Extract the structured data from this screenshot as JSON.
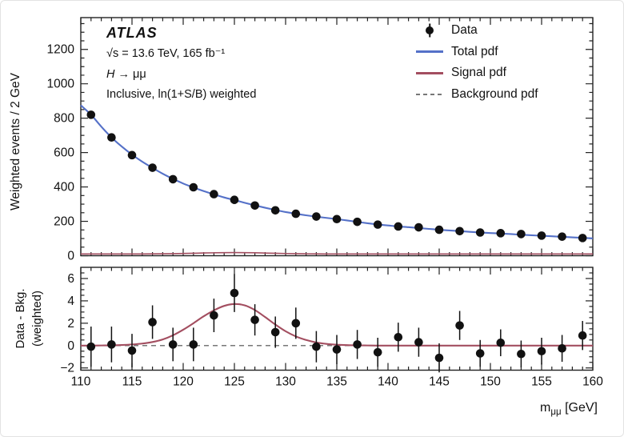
{
  "annotations": {
    "experiment": "ATLAS",
    "lumi_line": "√s = 13.6 TeV, 165 fb⁻¹",
    "process_h": "H",
    "process_rest": " → μμ",
    "selection_line": "Inclusive, ln(1+S/B) weighted"
  },
  "legend": {
    "entries": [
      {
        "label": "Data",
        "type": "marker"
      },
      {
        "label": "Total pdf",
        "type": "line"
      },
      {
        "label": "Signal pdf",
        "type": "line"
      },
      {
        "label": "Background pdf",
        "type": "dashed"
      }
    ]
  },
  "axes": {
    "main_ylabel": "Weighted events / 2 GeV",
    "lower_ylabel_line1": "Data - Bkg.",
    "lower_ylabel_line2": "(weighted)",
    "x_title_main": "m",
    "x_title_sub": "μμ",
    "x_title_unit": " [GeV]"
  },
  "colors": {
    "total": "#5571c8",
    "signal": "#a34e60",
    "background_pdf": "#777777",
    "frame": "#222222",
    "text": "#111111"
  },
  "chart_data": [
    {
      "type": "scatter+line",
      "panel": "main",
      "ylabel": "Weighted events / 2 GeV",
      "xlabel": "",
      "xlim": [
        110,
        160
      ],
      "ylim": [
        0,
        1385
      ],
      "xticks": [
        110,
        115,
        120,
        125,
        130,
        135,
        140,
        145,
        150,
        155,
        160
      ],
      "yticks": [
        0,
        200,
        400,
        600,
        800,
        1000,
        1200
      ],
      "grid": false,
      "legend_position": "top-right",
      "data_x": [
        111,
        113,
        115,
        117,
        119,
        121,
        123,
        125,
        127,
        129,
        131,
        133,
        135,
        137,
        139,
        141,
        143,
        145,
        147,
        149,
        151,
        153,
        155,
        157,
        159
      ],
      "data_y": [
        820,
        688,
        585,
        512,
        445,
        398,
        358,
        325,
        292,
        264,
        244,
        228,
        213,
        197,
        181,
        170,
        165,
        151,
        143,
        135,
        131,
        126,
        117,
        111,
        103
      ],
      "curve_x": [
        110,
        111,
        112,
        113,
        114,
        115,
        116,
        117,
        118,
        119,
        120,
        121,
        122,
        123,
        124,
        125,
        126,
        127,
        128,
        129,
        130,
        131,
        132,
        133,
        134,
        135,
        136,
        137,
        138,
        139,
        140,
        141,
        142,
        143,
        144,
        145,
        146,
        147,
        148,
        149,
        150,
        151,
        152,
        153,
        154,
        155,
        156,
        157,
        158,
        159,
        160
      ],
      "total_pdf": [
        875,
        820,
        751,
        688,
        635,
        588,
        547,
        511,
        477,
        447,
        420,
        397,
        376,
        357,
        339,
        324,
        308,
        293,
        279,
        266,
        254,
        244,
        235,
        227,
        220,
        213,
        205,
        197,
        189,
        182,
        176,
        170,
        166,
        161,
        156,
        151,
        147,
        143,
        139,
        135,
        132,
        129,
        126,
        122,
        119,
        116,
        113,
        110,
        107,
        104,
        101
      ],
      "signal_pdf": [
        10,
        10,
        10,
        10,
        10.1,
        10.2,
        10.4,
        10.7,
        11.2,
        12.0,
        13.1,
        14.4,
        15.8,
        16.9,
        17.8,
        18.2,
        17.9,
        17.0,
        15.6,
        14.1,
        12.8,
        11.8,
        11.1,
        10.6,
        10.3,
        10.2,
        10.1,
        10,
        10,
        10,
        10,
        10,
        10,
        10,
        10,
        10,
        10,
        10,
        10,
        10,
        10,
        10,
        10,
        10,
        10,
        10,
        10,
        10,
        10,
        10,
        10
      ]
    },
    {
      "type": "scatter+line",
      "panel": "residual",
      "ylabel": "Data - Bkg. (weighted)",
      "xlabel": "mμμ [GeV]",
      "xlim": [
        110,
        160
      ],
      "ylim": [
        -2.2,
        7.0
      ],
      "xticks": [
        110,
        115,
        120,
        125,
        130,
        135,
        140,
        145,
        150,
        155,
        160
      ],
      "yticks": [
        -2,
        0,
        2,
        4,
        6
      ],
      "grid": false,
      "background_level": 0,
      "data_x": [
        111,
        113,
        115,
        117,
        119,
        121,
        123,
        125,
        127,
        129,
        131,
        133,
        135,
        137,
        139,
        141,
        143,
        145,
        147,
        149,
        151,
        153,
        155,
        157,
        159
      ],
      "data_y": [
        -0.1,
        0.1,
        -0.45,
        2.1,
        0.1,
        0.1,
        2.7,
        4.7,
        2.3,
        1.2,
        2.0,
        -0.1,
        -0.35,
        0.1,
        -0.6,
        0.75,
        0.3,
        -1.1,
        1.8,
        -0.7,
        0.25,
        -0.75,
        -0.5,
        -0.25,
        0.9
      ],
      "data_err": [
        1.8,
        1.6,
        1.5,
        1.5,
        1.5,
        1.5,
        1.5,
        1.7,
        1.4,
        1.4,
        1.4,
        1.4,
        1.3,
        1.3,
        1.3,
        1.3,
        1.3,
        1.3,
        1.3,
        1.2,
        1.2,
        1.2,
        1.2,
        1.2,
        1.3
      ],
      "curve_x": [
        110,
        111,
        112,
        113,
        114,
        115,
        116,
        117,
        118,
        119,
        120,
        121,
        122,
        123,
        124,
        125,
        126,
        127,
        128,
        129,
        130,
        131,
        132,
        133,
        134,
        135,
        136,
        137,
        138,
        139,
        140,
        141,
        142,
        143,
        144,
        145,
        146,
        147,
        148,
        149,
        150,
        151,
        152,
        153,
        154,
        155,
        156,
        157,
        158,
        159,
        160
      ],
      "signal_curve": [
        0,
        0,
        0.01,
        0.02,
        0.05,
        0.1,
        0.18,
        0.32,
        0.55,
        0.92,
        1.42,
        2.0,
        2.62,
        3.15,
        3.55,
        3.72,
        3.6,
        3.18,
        2.55,
        1.88,
        1.28,
        0.82,
        0.5,
        0.28,
        0.15,
        0.08,
        0.04,
        0.02,
        0.01,
        0,
        0,
        0,
        0,
        0,
        0,
        0,
        0,
        0,
        0,
        0,
        0,
        0,
        0,
        0,
        0,
        0,
        0,
        0,
        0,
        0,
        0
      ]
    }
  ]
}
